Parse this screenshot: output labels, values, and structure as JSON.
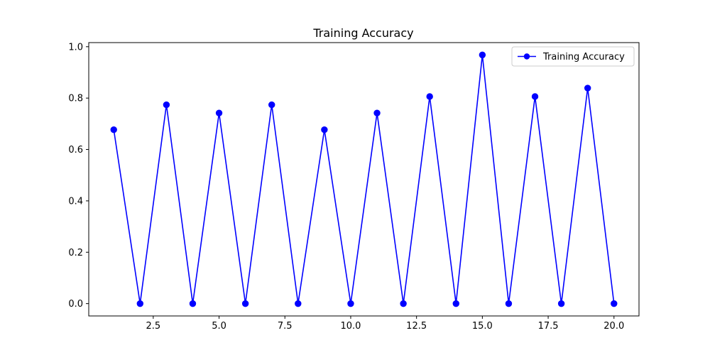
{
  "chart_data": {
    "type": "line",
    "title": "Training Accuracy",
    "xlabel": "",
    "ylabel": "",
    "x": [
      1,
      2,
      3,
      4,
      5,
      6,
      7,
      8,
      9,
      10,
      11,
      12,
      13,
      14,
      15,
      16,
      17,
      18,
      19,
      20
    ],
    "series": [
      {
        "name": "Training Accuracy",
        "color": "#0000ff",
        "marker": "circle",
        "values": [
          0.677,
          0,
          0.774,
          0,
          0.742,
          0,
          0.774,
          0,
          0.677,
          0,
          0.742,
          0,
          0.806,
          0,
          0.968,
          0,
          0.806,
          0,
          0.839,
          0
        ]
      }
    ],
    "xlim": [
      0.05,
      20.95
    ],
    "ylim": [
      -0.048,
      1.016
    ],
    "xticks": [
      2.5,
      5.0,
      7.5,
      10.0,
      12.5,
      15.0,
      17.5,
      20.0
    ],
    "xtick_labels": [
      "2.5",
      "5.0",
      "7.5",
      "10.0",
      "12.5",
      "15.0",
      "17.5",
      "20.0"
    ],
    "yticks": [
      0.0,
      0.2,
      0.4,
      0.6,
      0.8,
      1.0
    ],
    "ytick_labels": [
      "0.0",
      "0.2",
      "0.4",
      "0.6",
      "0.8",
      "1.0"
    ],
    "grid": false,
    "legend_position": "upper right"
  }
}
